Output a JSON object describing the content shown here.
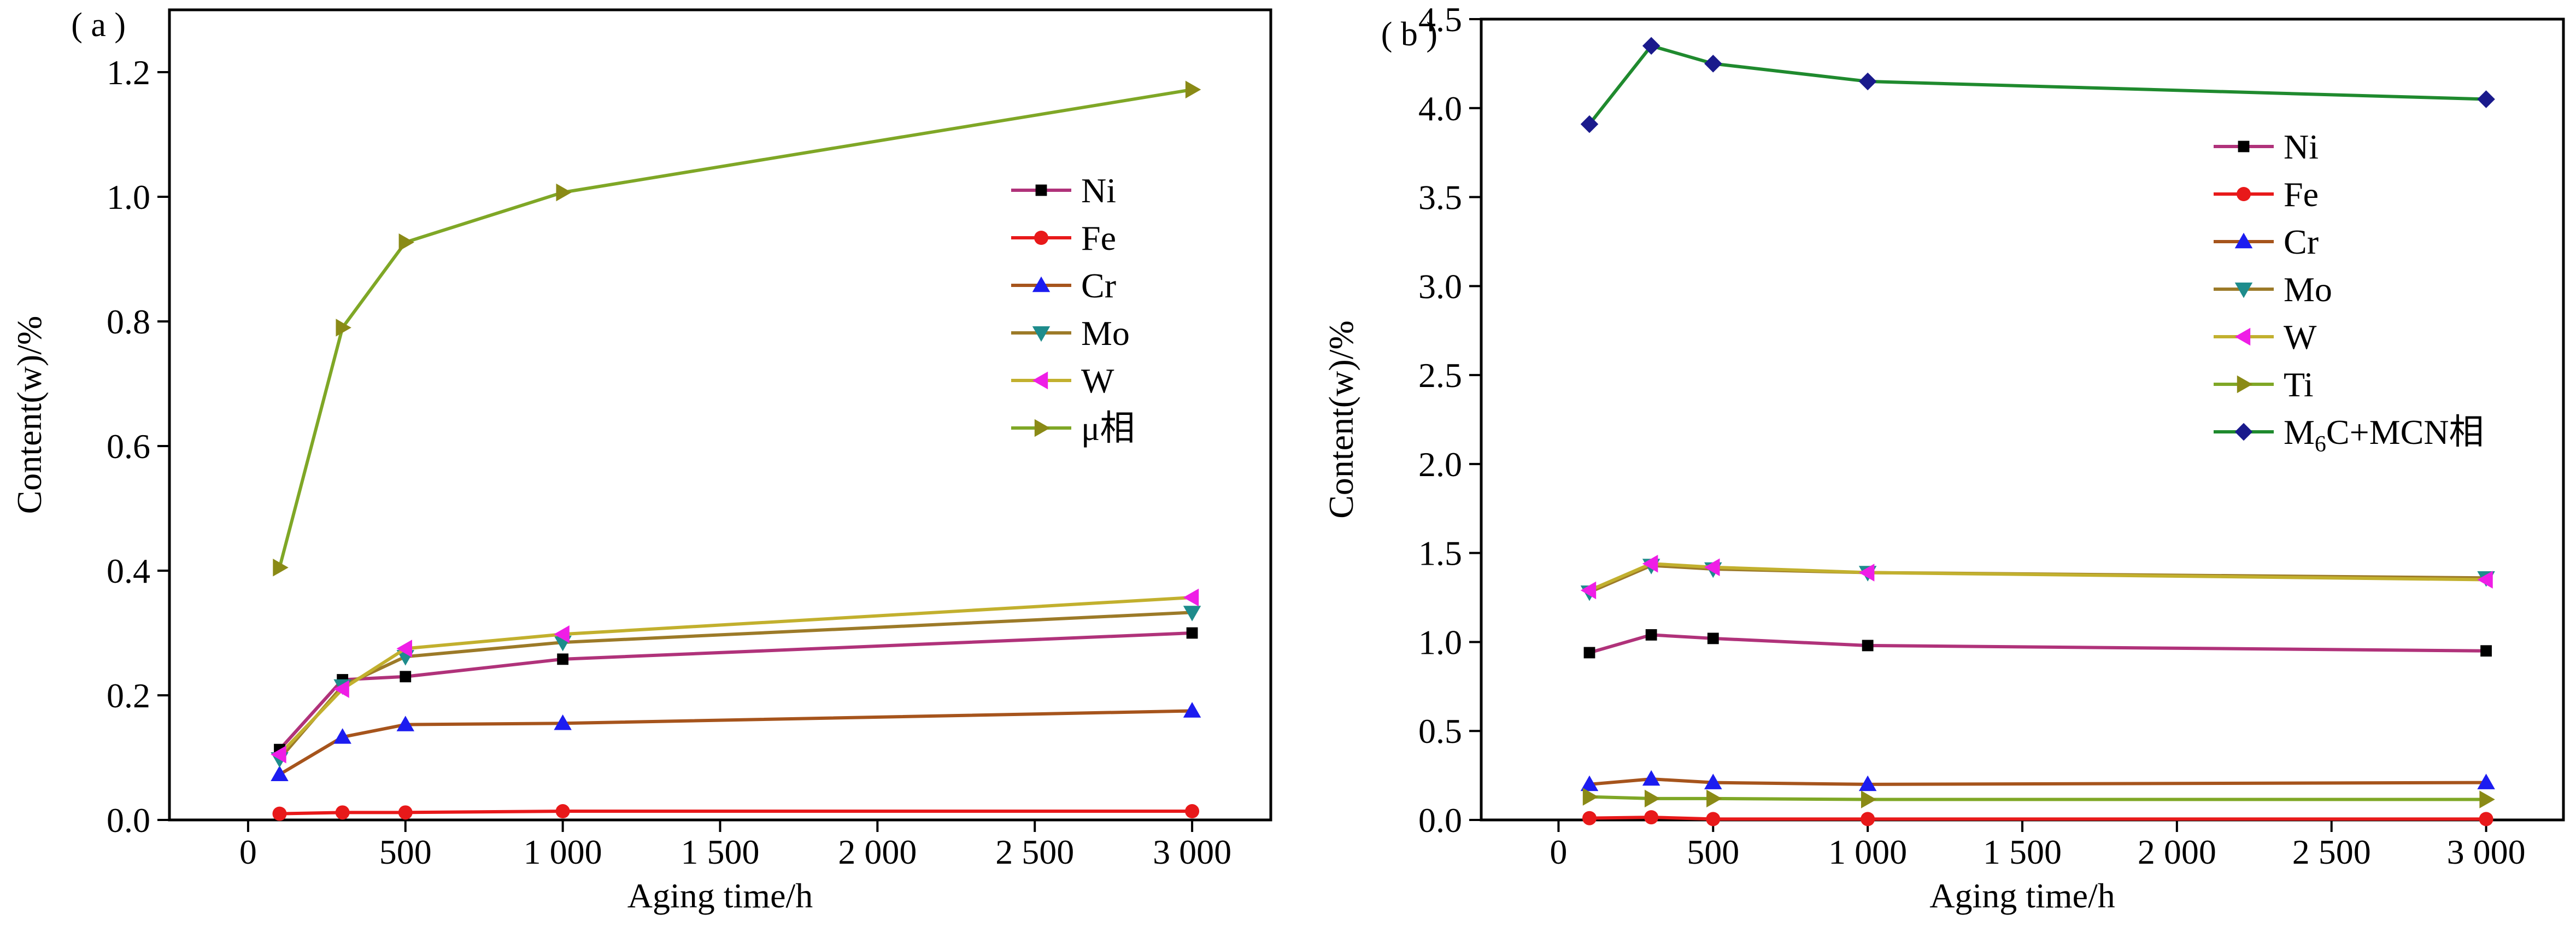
{
  "chart_data": [
    {
      "panel_label": "( a )",
      "type": "line",
      "xlabel": "Aging time/h",
      "ylabel": "Content(w)/%",
      "xlim": [
        -250,
        3250
      ],
      "ylim": [
        0.0,
        1.3
      ],
      "xticks": [
        0,
        500,
        1000,
        1500,
        2000,
        2500,
        3000
      ],
      "xtick_labels": [
        "0",
        "500",
        "1 000",
        "1 500",
        "2 000",
        "2 500",
        "3 000"
      ],
      "yticks": [
        0.0,
        0.2,
        0.4,
        0.6,
        0.8,
        1.0,
        1.2
      ],
      "ytick_labels": [
        "0.0",
        "0.2",
        "0.4",
        "0.6",
        "0.8",
        "1.0",
        "1.2"
      ],
      "legend_position": "right",
      "x": [
        100,
        300,
        500,
        1000,
        3000
      ],
      "series": [
        {
          "name": "Ni",
          "marker": "square",
          "color": "#b0327a",
          "marker_color": "#000000",
          "values": [
            0.113,
            0.225,
            0.23,
            0.258,
            0.3
          ]
        },
        {
          "name": "Fe",
          "marker": "circle",
          "color": "#e8191a",
          "marker_color": "#e8191a",
          "values": [
            0.01,
            0.012,
            0.012,
            0.014,
            0.014
          ]
        },
        {
          "name": "Cr",
          "marker": "triangle-up",
          "color": "#a6541c",
          "marker_color": "#1c1cf0",
          "values": [
            0.073,
            0.133,
            0.153,
            0.155,
            0.175
          ]
        },
        {
          "name": "Mo",
          "marker": "triangle-down",
          "color": "#9c7a28",
          "marker_color": "#1e8c8c",
          "values": [
            0.098,
            0.215,
            0.262,
            0.285,
            0.333
          ]
        },
        {
          "name": "W",
          "marker": "triangle-left",
          "color": "#c2b02e",
          "marker_color": "#ef1ee6",
          "values": [
            0.105,
            0.21,
            0.275,
            0.298,
            0.357
          ]
        },
        {
          "name": "μ相",
          "marker": "triangle-right",
          "color": "#7fa726",
          "marker_color": "#8a8a16",
          "values": [
            0.405,
            0.79,
            0.927,
            1.007,
            1.172
          ]
        }
      ]
    },
    {
      "panel_label": "( b )",
      "type": "line",
      "xlabel": "Aging time/h",
      "ylabel": "Content(w)/%",
      "xlim": [
        -250,
        3250
      ],
      "ylim": [
        0.0,
        4.5
      ],
      "xticks": [
        0,
        500,
        1000,
        1500,
        2000,
        2500,
        3000
      ],
      "xtick_labels": [
        "0",
        "500",
        "1 000",
        "1 500",
        "2 000",
        "2 500",
        "3 000"
      ],
      "yticks": [
        0.0,
        0.5,
        1.0,
        1.5,
        2.0,
        2.5,
        3.0,
        3.5,
        4.0,
        4.5
      ],
      "ytick_labels": [
        "0.0",
        "0.5",
        "1.0",
        "1.5",
        "2.0",
        "2.5",
        "3.0",
        "3.5",
        "4.0",
        "4.5"
      ],
      "legend_position": "right",
      "x": [
        100,
        300,
        500,
        1000,
        3000
      ],
      "series": [
        {
          "name": "Ni",
          "marker": "square",
          "color": "#b0327a",
          "marker_color": "#000000",
          "values": [
            0.94,
            1.04,
            1.02,
            0.98,
            0.95
          ]
        },
        {
          "name": "Fe",
          "marker": "circle",
          "color": "#e8191a",
          "marker_color": "#e8191a",
          "values": [
            0.01,
            0.015,
            0.005,
            0.005,
            0.005
          ]
        },
        {
          "name": "Cr",
          "marker": "triangle-up",
          "color": "#a6541c",
          "marker_color": "#1c1cf0",
          "values": [
            0.2,
            0.23,
            0.21,
            0.2,
            0.21
          ]
        },
        {
          "name": "Mo",
          "marker": "triangle-down",
          "color": "#9c7a28",
          "marker_color": "#1e8c8c",
          "values": [
            1.28,
            1.43,
            1.41,
            1.39,
            1.36
          ]
        },
        {
          "name": "W",
          "marker": "triangle-left",
          "color": "#c2b02e",
          "marker_color": "#ef1ee6",
          "values": [
            1.29,
            1.44,
            1.42,
            1.39,
            1.35
          ]
        },
        {
          "name": "Ti",
          "marker": "triangle-right",
          "color": "#7fa726",
          "marker_color": "#8a8a16",
          "values": [
            0.13,
            0.12,
            0.12,
            0.115,
            0.115
          ]
        },
        {
          "name": "M6C+MCN相",
          "name_parts": [
            "M",
            "6",
            "C+MCN相"
          ],
          "marker": "diamond",
          "color": "#1f8a2e",
          "marker_color": "#1a1a8c",
          "values": [
            3.91,
            4.35,
            4.25,
            4.15,
            4.05
          ]
        }
      ]
    }
  ]
}
